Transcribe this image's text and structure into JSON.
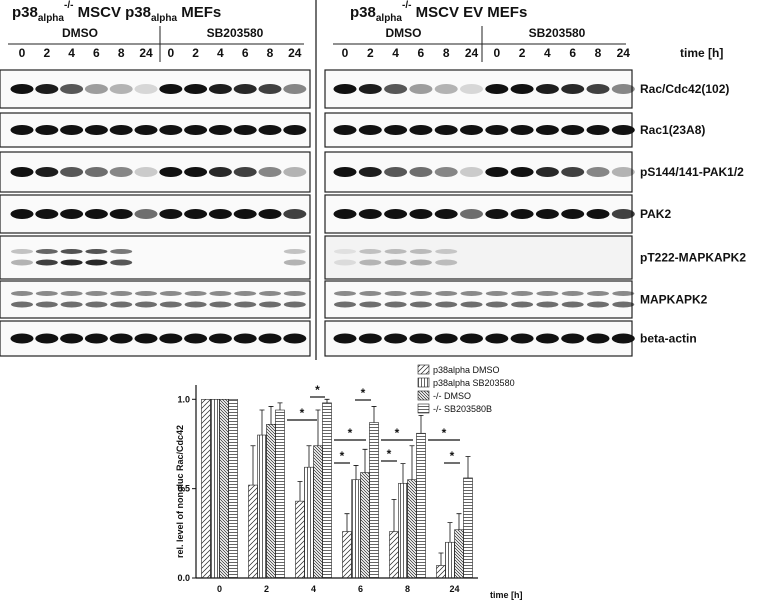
{
  "panels": [
    {
      "title": [
        "p38",
        "alpha",
        "-/-",
        " MSCV p38",
        "alpha",
        " MEFs"
      ],
      "groups": [
        "DMSO",
        "SB203580"
      ],
      "times": [
        "0",
        "2",
        "4",
        "6",
        "8",
        "24",
        "0",
        "2",
        "4",
        "6",
        "8",
        "24"
      ]
    },
    {
      "title": [
        "p38",
        "alpha",
        "-/-",
        " MSCV EV  MEFs"
      ],
      "groups": [
        "DMSO",
        "SB203580"
      ],
      "times": [
        "0",
        "2",
        "4",
        "6",
        "8",
        "24",
        "0",
        "2",
        "4",
        "6",
        "8",
        "24"
      ]
    }
  ],
  "time_label": "time [h]",
  "rows": [
    "Rac/Cdc42(102)",
    "Rac1(23A8)",
    "pS144/141-PAK1/2",
    "PAK2",
    "pT222-MAPKAPK2",
    "MAPKAPK2",
    "beta-actin"
  ],
  "chart_data": {
    "type": "bar",
    "ylabel": "rel. level of nongluc Rac/Cdc42",
    "xlabel": "time [h]",
    "categories": [
      "0",
      "2",
      "4",
      "6",
      "8",
      "24"
    ],
    "ylim": [
      0,
      1.08
    ],
    "yticks": [
      {
        "value": 0,
        "label": "0.0"
      },
      0.5,
      {
        "value": 1,
        "label": "1.0"
      }
    ],
    "series": [
      {
        "name": "p38alpha DMSO",
        "color": "#222222",
        "hatch": "diagonal",
        "values": [
          1.0,
          0.52,
          0.43,
          0.26,
          0.26,
          0.07
        ],
        "errors": [
          0,
          0.22,
          0.11,
          0.1,
          0.18,
          0.07
        ]
      },
      {
        "name": "p38alpha SB203580",
        "color": "#222222",
        "hatch": "vertical",
        "values": [
          1.0,
          0.8,
          0.62,
          0.55,
          0.53,
          0.2
        ],
        "errors": [
          0,
          0.14,
          0.12,
          0.08,
          0.11,
          0.11
        ]
      },
      {
        "name": "-/- DMSO",
        "color": "#222222",
        "hatch": "dense-diagonal",
        "values": [
          1.0,
          0.86,
          0.74,
          0.59,
          0.55,
          0.27
        ],
        "errors": [
          0,
          0.1,
          0.2,
          0.13,
          0.19,
          0.09
        ]
      },
      {
        "name": "-/- SB203580B",
        "color": "#222222",
        "hatch": "horizontal",
        "values": [
          1.0,
          0.94,
          0.98,
          0.87,
          0.81,
          0.56
        ],
        "errors": [
          0,
          0.04,
          0.02,
          0.09,
          0.1,
          0.12
        ]
      }
    ],
    "annotations": [
      "*",
      "*",
      "*",
      "*",
      "*",
      "*",
      "*",
      "*",
      "*"
    ]
  }
}
